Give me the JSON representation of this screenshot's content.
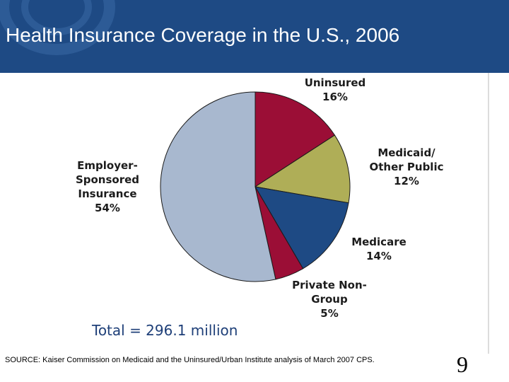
{
  "title": "Health Insurance Coverage in the U.S., 2006",
  "total_label": "Total = 296.1 million",
  "source": "SOURCE: Kaiser Commission on Medicaid and the Uninsured/Urban Institute analysis of March 2007 CPS.",
  "page_number": "9",
  "colors": {
    "header": "#1e4a84",
    "uninsured": "#9b0e36",
    "medicaid": "#afae57",
    "medicare": "#1e4a84",
    "private_nongroup": "#9b0e36",
    "employer": "#a8b8cf"
  },
  "chart_data": {
    "type": "pie",
    "title": "",
    "slices": [
      {
        "key": "uninsured",
        "label_lines": [
          "Uninsured",
          "16%"
        ],
        "value": 16
      },
      {
        "key": "medicaid",
        "label_lines": [
          "Medicaid/",
          "Other Public",
          "12%"
        ],
        "value": 12
      },
      {
        "key": "medicare",
        "label_lines": [
          "Medicare",
          "14%"
        ],
        "value": 14
      },
      {
        "key": "private_nongroup",
        "label_lines": [
          "Private Non-",
          "Group",
          "5%"
        ],
        "value": 5
      },
      {
        "key": "employer",
        "label_lines": [
          "Employer-",
          "Sponsored",
          "Insurance",
          "54%"
        ],
        "value": 54
      }
    ]
  }
}
